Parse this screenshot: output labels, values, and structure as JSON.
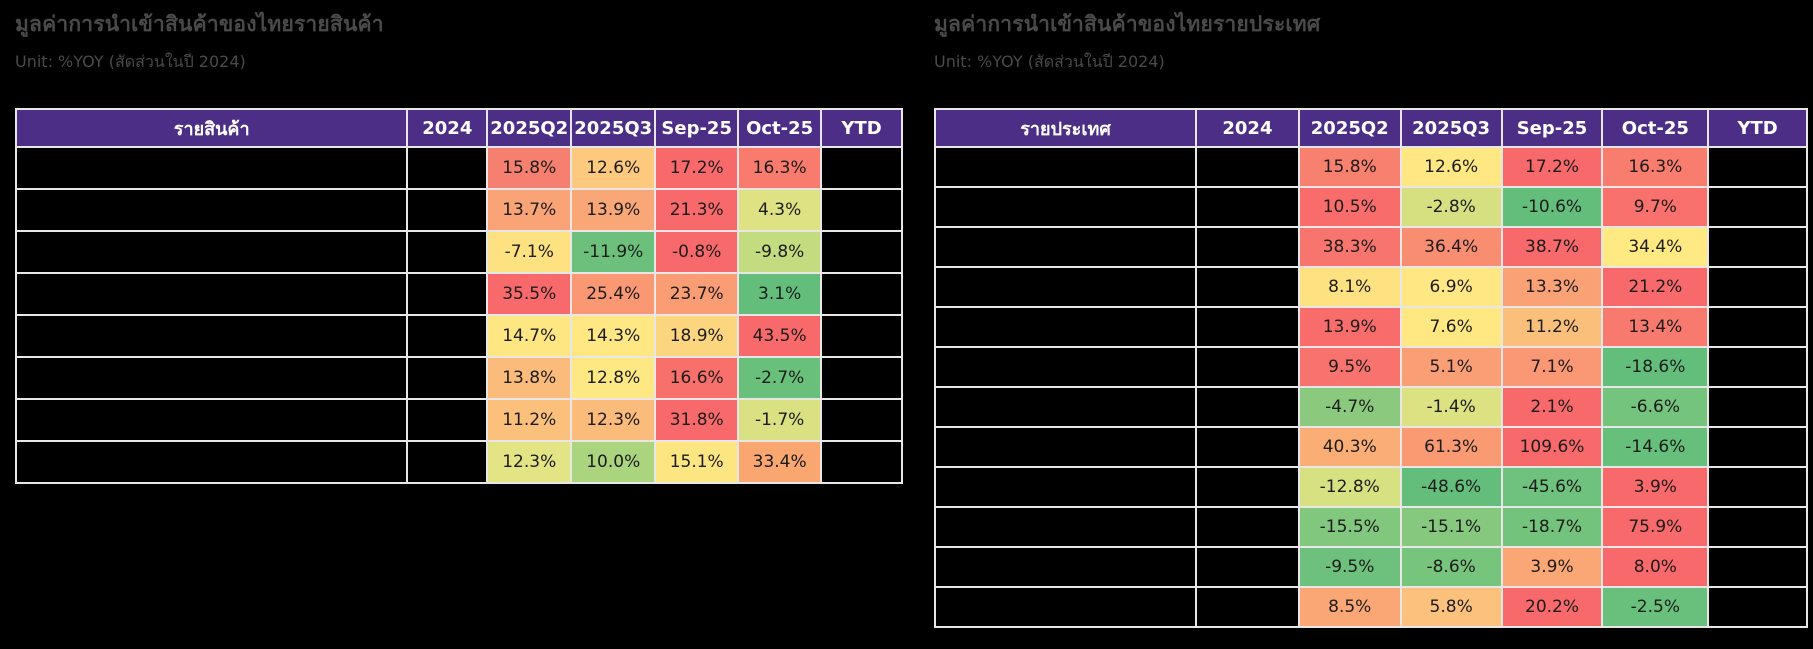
{
  "colors": {
    "page_bg": "#000000",
    "header_bg": "#4c2e86",
    "grid": "#e8e6e6",
    "masked_bg": "#000000",
    "title_text": "#4a4a4a",
    "cell_text": "#1c1c1c",
    "scale_high": "#f8696b",
    "scale_mid": "#ffeb84",
    "scale_low": "#63be7b"
  },
  "chart_data": [
    {
      "type": "table",
      "title": "มูลค่าการนำเข้าสินค้าของไทยรายสินค้า",
      "unit": "Unit: %YOY (สัดส่วนในปี 2024)",
      "columns": [
        "รายสินค้า",
        "2024",
        "2025Q2",
        "2025Q3",
        "Sep-25",
        "Oct-25",
        "YTD"
      ],
      "redacted_columns": [
        "รายสินค้า",
        "2024",
        "YTD"
      ],
      "legend": "per-row heatmap: red = high, yellow = mid, green = low",
      "rows": [
        {
          "values": [
            "15.8%",
            "12.6%",
            "17.2%",
            "16.3%"
          ],
          "colors": [
            "#f5806f",
            "#fcc97e",
            "#f8696b",
            "#f87b6e"
          ]
        },
        {
          "values": [
            "13.7%",
            "13.9%",
            "21.3%",
            "4.3%"
          ],
          "colors": [
            "#f9a376",
            "#f9a777",
            "#f8696b",
            "#dfe283"
          ]
        },
        {
          "values": [
            "-7.1%",
            "-11.9%",
            "-0.8%",
            "-9.8%"
          ],
          "colors": [
            "#fee181",
            "#6cc07c",
            "#f8696b",
            "#c3dc80"
          ]
        },
        {
          "values": [
            "35.5%",
            "25.4%",
            "23.7%",
            "3.1%"
          ],
          "colors": [
            "#f8696b",
            "#fa9874",
            "#fa9d75",
            "#63be7b"
          ]
        },
        {
          "values": [
            "14.7%",
            "14.3%",
            "18.9%",
            "43.5%"
          ],
          "colors": [
            "#fee783",
            "#ffe884",
            "#fcd57f",
            "#f8696b"
          ]
        },
        {
          "values": [
            "13.8%",
            "12.8%",
            "16.6%",
            "-2.7%"
          ],
          "colors": [
            "#fbbb7b",
            "#fee883",
            "#f8706c",
            "#68c07b"
          ]
        },
        {
          "values": [
            "11.2%",
            "12.3%",
            "31.8%",
            "-1.7%"
          ],
          "colors": [
            "#fbc07c",
            "#fbbc7b",
            "#f8696b",
            "#d9e182"
          ]
        },
        {
          "values": [
            "12.3%",
            "10.0%",
            "15.1%",
            "33.4%"
          ],
          "colors": [
            "#e3e584",
            "#abd47f",
            "#fde581",
            "#f9a671"
          ]
        }
      ]
    },
    {
      "type": "table",
      "title": "มูลค่าการนำเข้าสินค้าของไทยรายประเทศ",
      "unit": "Unit: %YOY (สัดส่วนในปี 2024)",
      "columns": [
        "รายประเทศ",
        "2024",
        "2025Q2",
        "2025Q3",
        "Sep-25",
        "Oct-25",
        "YTD"
      ],
      "redacted_columns": [
        "รายประเทศ",
        "2024",
        "YTD"
      ],
      "legend": "per-row heatmap: red = high, yellow = mid, green = low",
      "rows": [
        {
          "values": [
            "15.8%",
            "12.6%",
            "17.2%",
            "16.3%"
          ],
          "colors": [
            "#f8806f",
            "#ffe884",
            "#f8696b",
            "#f87d6e"
          ]
        },
        {
          "values": [
            "10.5%",
            "-2.8%",
            "-10.6%",
            "9.7%"
          ],
          "colors": [
            "#f86d6c",
            "#d7e081",
            "#63be7b",
            "#f8716d"
          ]
        },
        {
          "values": [
            "38.3%",
            "36.4%",
            "38.7%",
            "34.4%"
          ],
          "colors": [
            "#f8746e",
            "#f98d72",
            "#f8696b",
            "#ffe983"
          ]
        },
        {
          "values": [
            "8.1%",
            "6.9%",
            "13.3%",
            "21.2%"
          ],
          "colors": [
            "#fee181",
            "#ffe883",
            "#faa276",
            "#f8696b"
          ]
        },
        {
          "values": [
            "13.9%",
            "7.6%",
            "11.2%",
            "13.4%"
          ],
          "colors": [
            "#f86d6c",
            "#ffe782",
            "#fbbf7c",
            "#f87a6e"
          ]
        },
        {
          "values": [
            "9.5%",
            "5.1%",
            "7.1%",
            "-18.6%"
          ],
          "colors": [
            "#f8736d",
            "#fa9e75",
            "#fa9775",
            "#63be7b"
          ]
        },
        {
          "values": [
            "-4.7%",
            "-1.4%",
            "2.1%",
            "-6.6%"
          ],
          "colors": [
            "#8bca7e",
            "#dce282",
            "#f8696b",
            "#75c47d"
          ]
        },
        {
          "values": [
            "40.3%",
            "61.3%",
            "109.6%",
            "-14.6%"
          ],
          "colors": [
            "#fbad76",
            "#fa9a73",
            "#f8696b",
            "#66bf7b"
          ]
        },
        {
          "values": [
            "-12.8%",
            "-48.6%",
            "-45.6%",
            "3.9%"
          ],
          "colors": [
            "#d8e182",
            "#63be7b",
            "#6fc27d",
            "#f8696b"
          ]
        },
        {
          "values": [
            "-15.5%",
            "-15.1%",
            "-18.7%",
            "75.9%"
          ],
          "colors": [
            "#82c77e",
            "#85c87e",
            "#74c37d",
            "#f8696b"
          ]
        },
        {
          "values": [
            "-9.5%",
            "-8.6%",
            "3.9%",
            "8.0%"
          ],
          "colors": [
            "#6ec17c",
            "#77c47d",
            "#fba675",
            "#f8696b"
          ]
        },
        {
          "values": [
            "8.5%",
            "5.8%",
            "20.2%",
            "-2.5%"
          ],
          "colors": [
            "#fba775",
            "#fcc17c",
            "#f8696b",
            "#68c07c"
          ]
        }
      ]
    }
  ]
}
